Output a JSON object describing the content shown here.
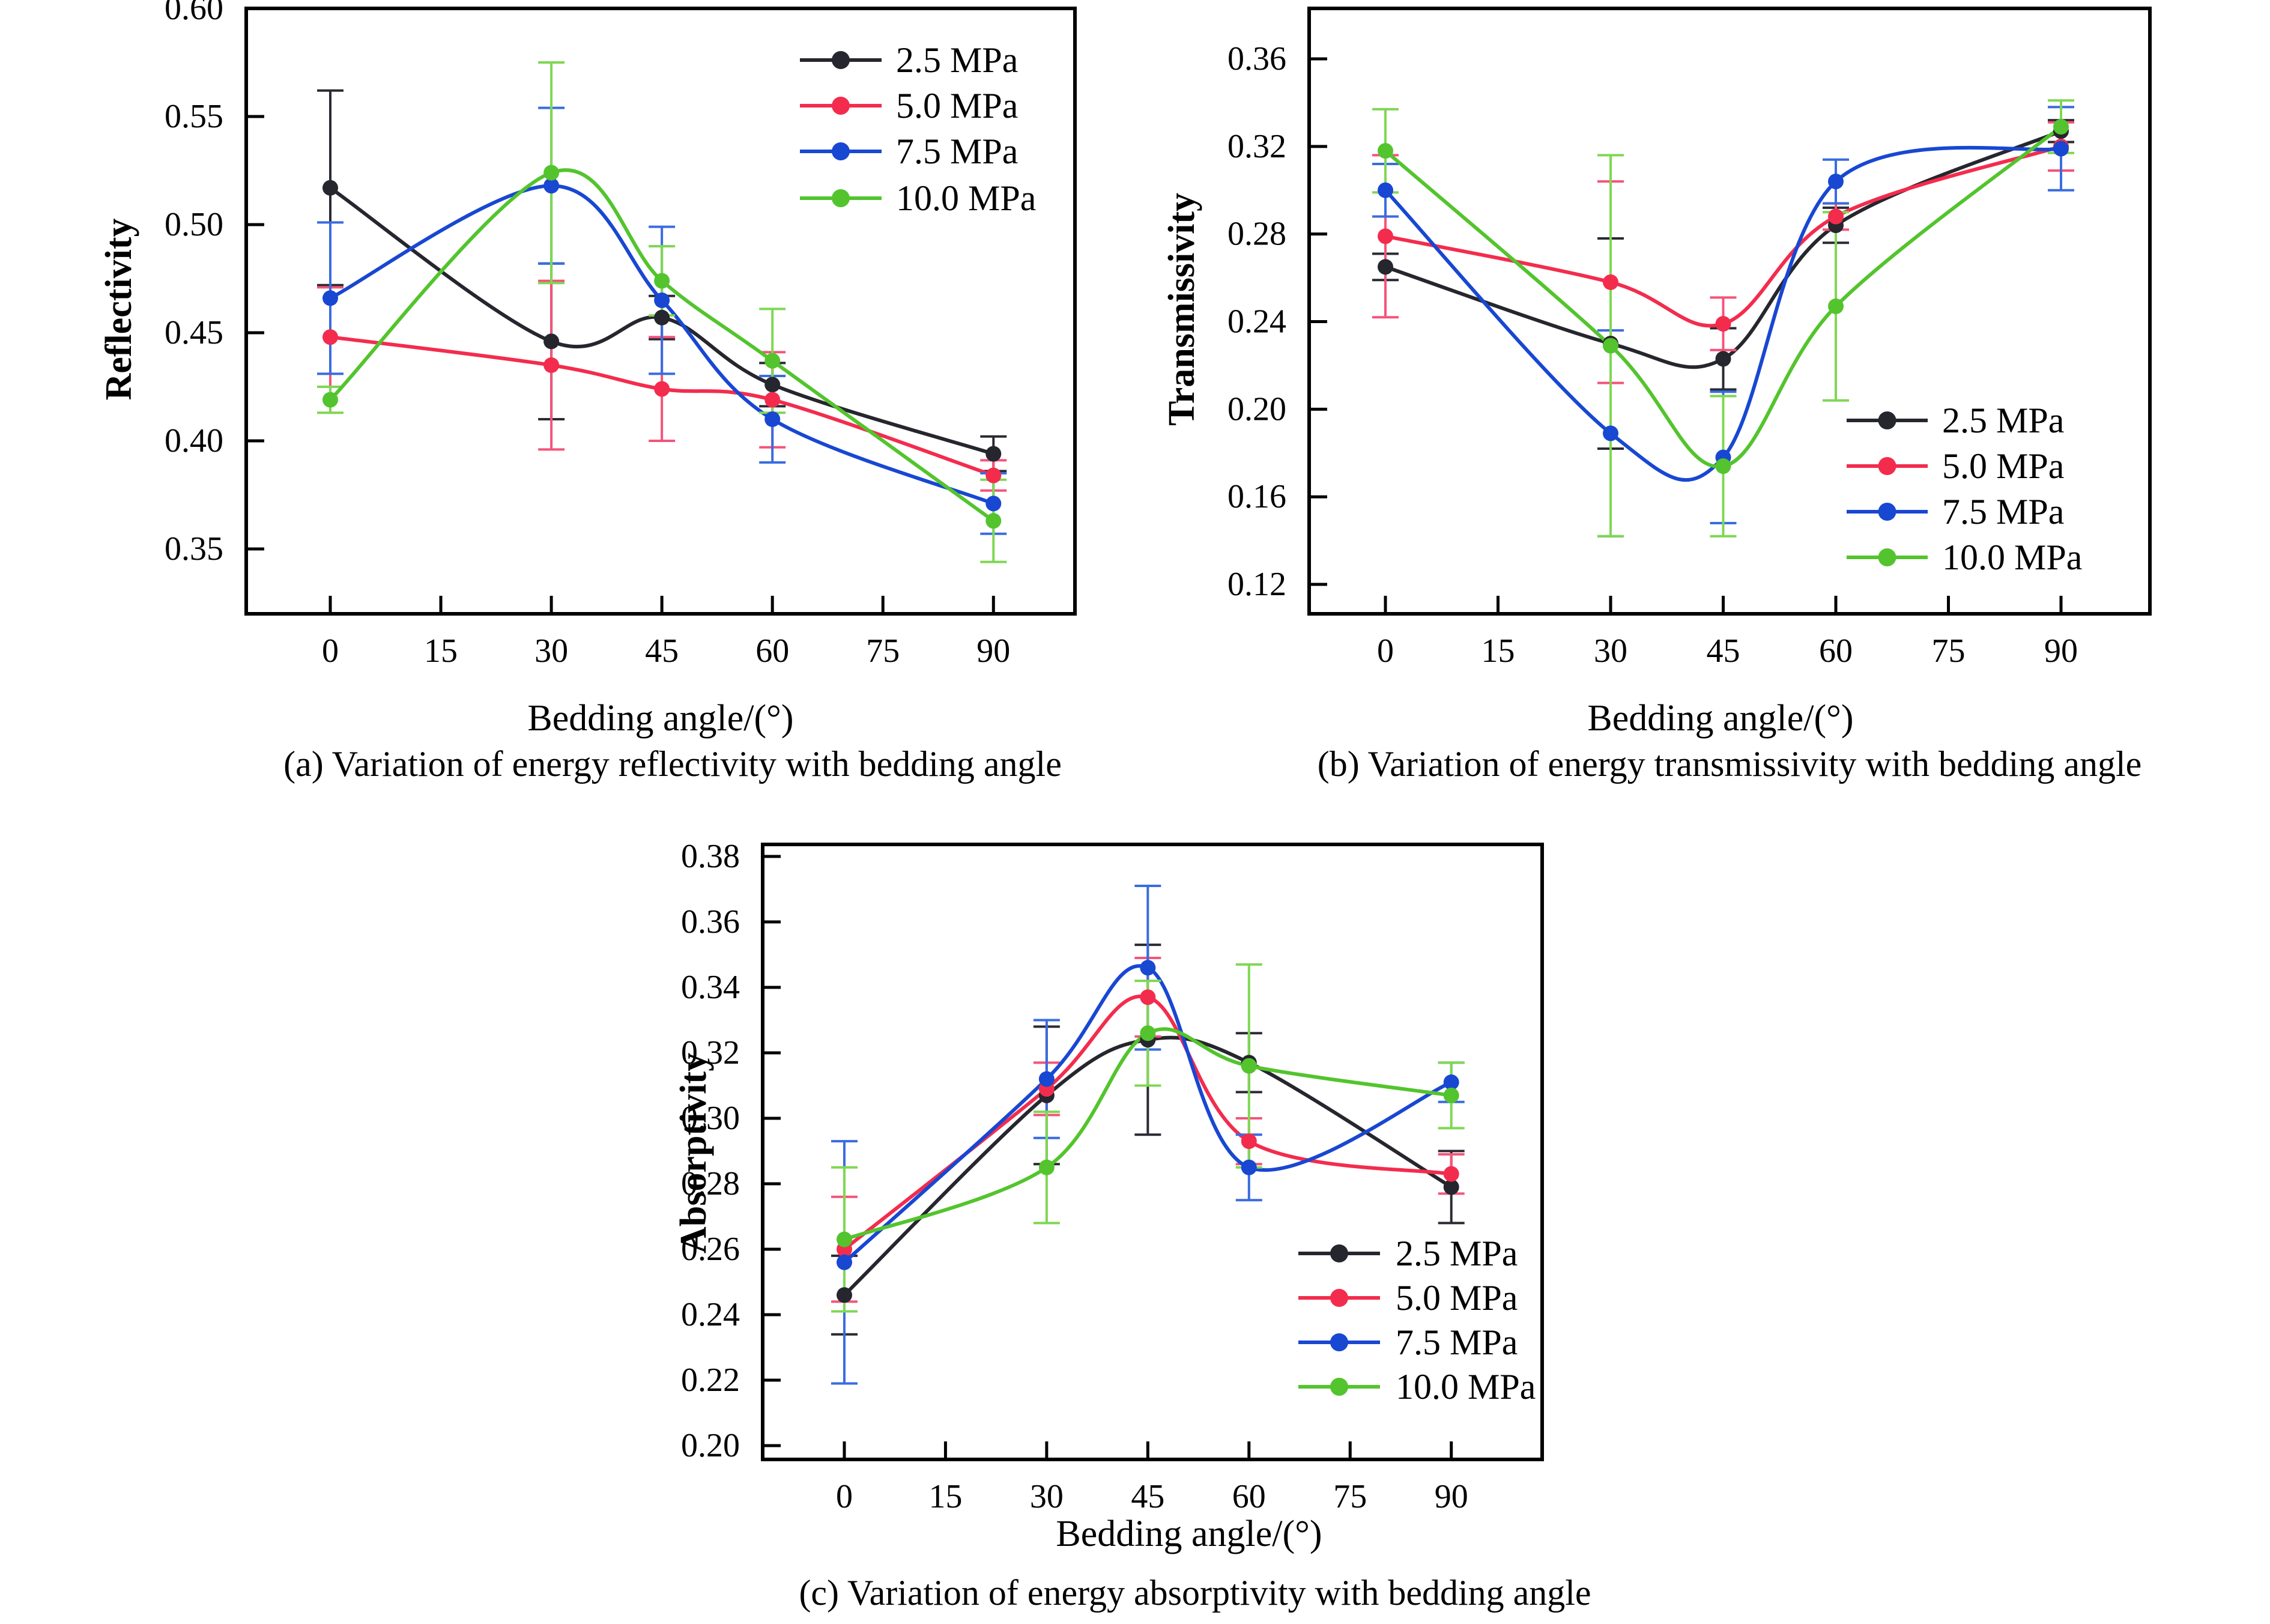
{
  "figure": {
    "background": "#ffffff",
    "axis_color": "#000000",
    "text_color": "#000000"
  },
  "colors": {
    "2.5 MPa": "#26262e",
    "5.0 MPa": "#f32c4d",
    "7.5 MPa": "#1847d2",
    "10.0 MPa": "#53c42d",
    "err": {
      "2.5 MPa": "#2a2a33",
      "5.0 MPa": "#f4547a",
      "7.5 MPa": "#3a6ce0",
      "10.0 MPa": "#7fd753"
    }
  },
  "chart_data": [
    {
      "id": "a",
      "type": "line",
      "caption": "(a) Variation of energy reflectivity with bedding angle",
      "xlabel": "Bedding angle/(°)",
      "ylabel": "Reflectivity",
      "x": [
        0,
        30,
        45,
        60,
        90
      ],
      "xticks": [
        0,
        15,
        30,
        45,
        60,
        75,
        90
      ],
      "ytick_labels": [
        "0.60",
        "0.55",
        "0.50",
        "0.45",
        "0.40",
        "0.35"
      ],
      "ylim": [
        0.32,
        0.605
      ],
      "grid": false,
      "legend_position": "top-right",
      "series": [
        {
          "name": "2.5 MPa",
          "values": [
            0.517,
            0.446,
            0.457,
            0.426,
            0.394
          ],
          "errors": [
            0.045,
            0.036,
            0.01,
            0.01,
            0.008
          ]
        },
        {
          "name": "5.0 MPa",
          "values": [
            0.448,
            0.435,
            0.424,
            0.419,
            0.384
          ],
          "errors": [
            0.023,
            0.039,
            0.024,
            0.022,
            0.007
          ]
        },
        {
          "name": "7.5 MPa",
          "values": [
            0.466,
            0.518,
            0.465,
            0.41,
            0.371
          ],
          "errors": [
            0.035,
            0.036,
            0.034,
            0.02,
            0.014
          ]
        },
        {
          "name": "10.0 MPa",
          "values": [
            0.419,
            0.524,
            0.474,
            0.437,
            0.363
          ],
          "errors": [
            0.006,
            0.051,
            0.016,
            0.024,
            0.019
          ]
        }
      ]
    },
    {
      "id": "b",
      "type": "line",
      "caption": "(b) Variation of energy transmissivity with bedding angle",
      "xlabel": "Bedding angle/(°)",
      "ylabel": "Transmissivity",
      "x": [
        0,
        30,
        45,
        60,
        90
      ],
      "xticks": [
        0,
        15,
        30,
        45,
        60,
        75,
        90
      ],
      "ytick_labels": [
        "0.36",
        "0.32",
        "0.28",
        "0.24",
        "0.20",
        "0.16",
        "0.12"
      ],
      "ylim": [
        0.108,
        0.383
      ],
      "grid": false,
      "legend_position": "bottom-right",
      "series": [
        {
          "name": "2.5 MPa",
          "values": [
            0.265,
            0.23,
            0.223,
            0.284,
            0.327
          ],
          "errors": [
            0.006,
            0.048,
            0.014,
            0.008,
            0.005
          ]
        },
        {
          "name": "5.0 MPa",
          "values": [
            0.279,
            0.258,
            0.239,
            0.288,
            0.32
          ],
          "errors": [
            0.037,
            0.046,
            0.012,
            0.006,
            0.011
          ]
        },
        {
          "name": "7.5 MPa",
          "values": [
            0.3,
            0.189,
            0.178,
            0.304,
            0.319
          ],
          "errors": [
            0.012,
            0.047,
            0.03,
            0.01,
            0.019
          ]
        },
        {
          "name": "10.0 MPa",
          "values": [
            0.318,
            0.229,
            0.174,
            0.247,
            0.329
          ],
          "errors": [
            0.019,
            0.087,
            0.032,
            0.043,
            0.012
          ]
        }
      ]
    },
    {
      "id": "c",
      "type": "line",
      "caption": "(c) Variation of energy absorptivity with bedding angle",
      "xlabel": "Bedding angle/(°)",
      "ylabel": "Absorptivity",
      "x": [
        0,
        30,
        45,
        60,
        90
      ],
      "xticks": [
        0,
        15,
        30,
        45,
        60,
        75,
        90
      ],
      "ytick_labels": [
        "0.38",
        "0.36",
        "0.34",
        "0.32",
        "0.30",
        "0.28",
        "0.26",
        "0.24",
        "0.22",
        "0.20"
      ],
      "ylim": [
        0.196,
        0.383
      ],
      "grid": false,
      "legend_position": "bottom-right",
      "series": [
        {
          "name": "2.5 MPa",
          "values": [
            0.246,
            0.307,
            0.324,
            0.317,
            0.279
          ],
          "errors": [
            0.012,
            0.021,
            0.029,
            0.009,
            0.011
          ]
        },
        {
          "name": "5.0 MPa",
          "values": [
            0.26,
            0.309,
            0.337,
            0.293,
            0.283
          ],
          "errors": [
            0.016,
            0.008,
            0.012,
            0.007,
            0.006
          ]
        },
        {
          "name": "7.5 MPa",
          "values": [
            0.256,
            0.312,
            0.346,
            0.285,
            0.311
          ],
          "errors": [
            0.037,
            0.018,
            0.025,
            0.01,
            0.006
          ]
        },
        {
          "name": "10.0 MPa",
          "values": [
            0.263,
            0.285,
            0.326,
            0.316,
            0.307
          ],
          "errors": [
            0.022,
            0.017,
            0.016,
            0.031,
            0.01
          ]
        }
      ]
    }
  ]
}
